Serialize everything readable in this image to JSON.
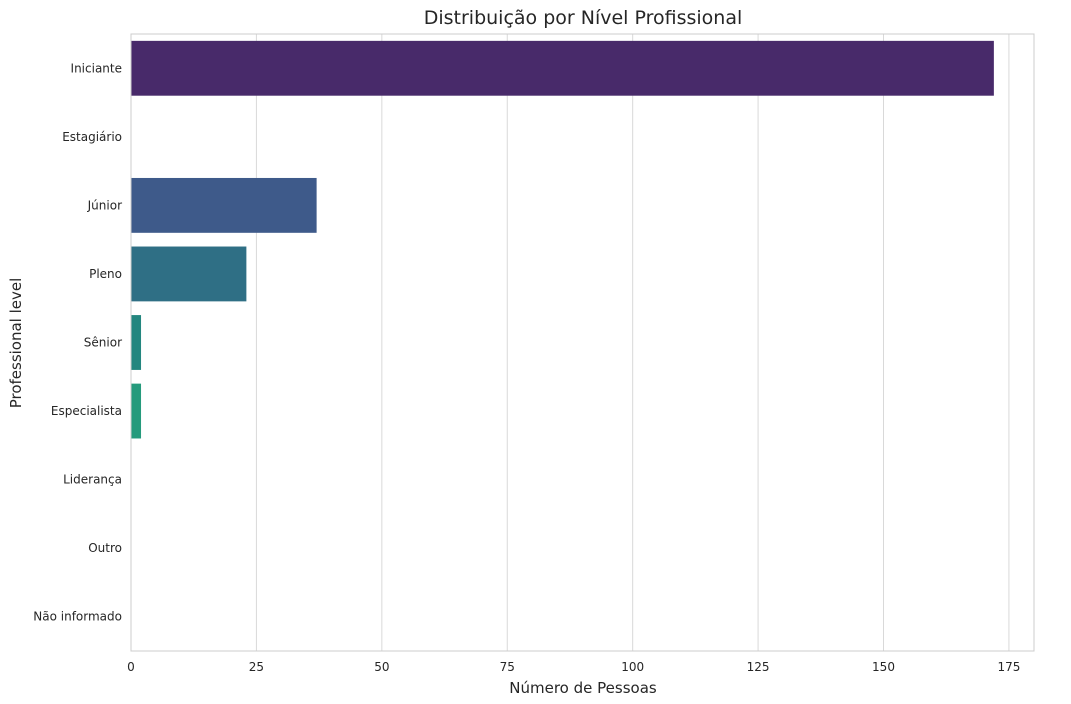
{
  "chart_data": {
    "type": "bar",
    "orientation": "horizontal",
    "title": "Distribuição por Nível Profissional",
    "xlabel": "Número de Pessoas",
    "ylabel": "Professional level",
    "categories": [
      "Iniciante",
      "Estagiário",
      "Júnior",
      "Pleno",
      "Sênior",
      "Especialista",
      "Liderança",
      "Outro",
      "Não informado"
    ],
    "values": [
      172,
      0,
      37,
      23,
      2,
      2,
      0,
      0,
      0
    ],
    "colors": [
      "#482a6a",
      "#46337e",
      "#3e5a8a",
      "#2f6f85",
      "#23867f",
      "#259a7c",
      "#3fb477",
      "#6bc85c",
      "#a3d93f"
    ],
    "xlim": [
      0,
      180
    ],
    "xticks": [
      0,
      25,
      50,
      75,
      100,
      125,
      150,
      175
    ],
    "grid": "x"
  }
}
